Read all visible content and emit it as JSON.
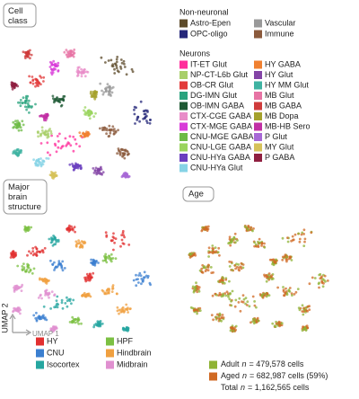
{
  "panels": {
    "cell_class": {
      "label": "Cell class",
      "legend": {
        "groups": [
          {
            "title": "Non-neuronal",
            "items": [
              "Astro-Epen",
              "Vascular",
              "OPC-oligo",
              "Immune"
            ]
          },
          {
            "title": "Neurons",
            "items": [
              "IT-ET Glut",
              "NP-CT-L6b Glut",
              "OB-CR Glut",
              "DG-IMN Glut",
              "OB-IMN GABA",
              "CTX-CGE GABA",
              "CTX-MGE GABA",
              "CNU-MGE GABA",
              "CNU-LGE GABA",
              "CNU-HYa GABA",
              "CNU-HYa Glut",
              "HY GABA",
              "HY Glut",
              "HY MM Glut",
              "MB Glut",
              "MB GABA",
              "MB Dopa",
              "MB-HB Sero",
              "P Glut",
              "MY Glut",
              "P GABA"
            ]
          }
        ]
      }
    },
    "structure": {
      "label": "Major brain structure",
      "legend": [
        "HY",
        "HPF",
        "CNU",
        "Hindbrain",
        "Isocortex",
        "Midbrain"
      ],
      "axes": {
        "y": "UMAP 2",
        "x": "UMAP 1"
      }
    },
    "age": {
      "label": "Age",
      "legend": [
        {
          "name": "Adult",
          "symbol": "n",
          "count": "= 479,578 cells"
        },
        {
          "name": "Aged",
          "symbol": "n",
          "count": "= 682,987 cells (59%)"
        },
        {
          "name": "Total",
          "symbol": "n",
          "count": "= 1,162,565 cells"
        }
      ]
    }
  }
}
